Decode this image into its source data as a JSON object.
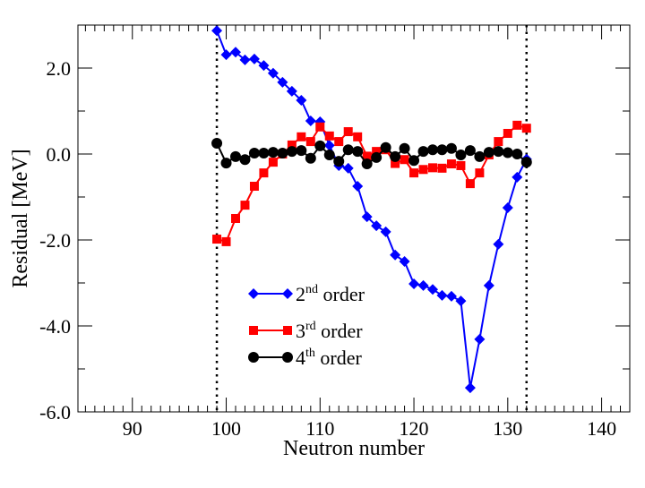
{
  "chart_data": {
    "type": "line",
    "title": "",
    "xlabel": "Neutron number",
    "ylabel": "Residual [MeV]",
    "xlim": [
      84.2,
      143
    ],
    "ylim": [
      -6.0,
      3.0
    ],
    "xticks": [
      90,
      100,
      110,
      120,
      130,
      140
    ],
    "xtick_labels": [
      "90",
      "100",
      "110",
      "120",
      "130",
      "140"
    ],
    "yticks": [
      2.0,
      0.0,
      -2.0,
      -4.0,
      -6.0
    ],
    "ytick_labels": [
      "2.0",
      "0.0",
      "-2.0",
      "-4.0",
      "-6.0"
    ],
    "grid": false,
    "vertical_dotted_lines": [
      99,
      132
    ],
    "legend_placement": "bottom-center",
    "x": [
      99,
      100,
      101,
      102,
      103,
      104,
      105,
      106,
      107,
      108,
      109,
      110,
      111,
      112,
      113,
      114,
      115,
      116,
      117,
      118,
      119,
      120,
      121,
      122,
      123,
      124,
      125,
      126,
      127,
      128,
      129,
      130,
      131,
      132
    ],
    "series": [
      {
        "name": "2nd order",
        "label_base": "2",
        "label_sup": "nd",
        "label_rest": " order",
        "color": "#0000ff",
        "marker": "diamond",
        "values": [
          2.87,
          2.31,
          2.37,
          2.19,
          2.21,
          2.06,
          1.88,
          1.67,
          1.46,
          1.25,
          0.77,
          0.75,
          0.2,
          -0.27,
          -0.33,
          -0.75,
          -1.46,
          -1.67,
          -1.81,
          -2.35,
          -2.5,
          -3.02,
          -3.06,
          -3.15,
          -3.29,
          -3.31,
          -3.42,
          -5.44,
          -4.31,
          -3.06,
          -2.1,
          -1.25,
          -0.54,
          -0.12
        ]
      },
      {
        "name": "3rd order",
        "label_base": "3",
        "label_sup": "rd",
        "label_rest": " order",
        "color": "#ff0000",
        "marker": "square",
        "values": [
          -1.98,
          -2.04,
          -1.5,
          -1.19,
          -0.75,
          -0.44,
          -0.19,
          0.0,
          0.21,
          0.4,
          0.29,
          0.63,
          0.42,
          0.29,
          0.52,
          0.4,
          -0.05,
          0.06,
          0.1,
          -0.22,
          -0.13,
          -0.44,
          -0.36,
          -0.32,
          -0.33,
          -0.23,
          -0.27,
          -0.69,
          -0.44,
          -0.02,
          0.29,
          0.48,
          0.67,
          0.6
        ]
      },
      {
        "name": "4th order",
        "label_base": "4",
        "label_sup": "th",
        "label_rest": " order",
        "color": "#000000",
        "marker": "circle",
        "values": [
          0.25,
          -0.21,
          -0.06,
          -0.13,
          0.02,
          0.02,
          0.04,
          0.02,
          0.06,
          0.08,
          -0.1,
          0.19,
          -0.02,
          -0.17,
          0.1,
          0.06,
          -0.23,
          -0.08,
          0.15,
          -0.06,
          0.13,
          -0.15,
          0.06,
          0.1,
          0.1,
          0.13,
          -0.02,
          0.08,
          -0.06,
          0.04,
          0.06,
          0.03,
          0.0,
          -0.19
        ]
      }
    ]
  }
}
